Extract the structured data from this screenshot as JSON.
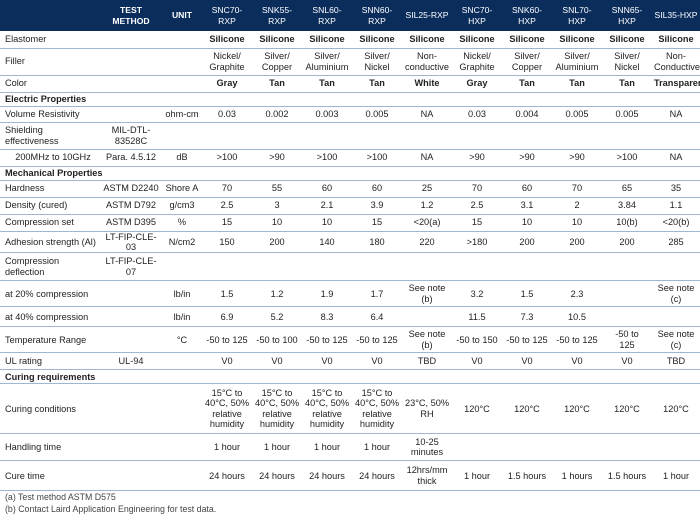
{
  "header": {
    "blank": "",
    "test_method": "TEST\nMETHOD",
    "unit": "UNIT",
    "products": [
      "SNC70-\nRXP",
      "SNK55-\nRXP",
      "SNL60-\nRXP",
      "SNN60-\nRXP",
      "SIL25-RXP",
      "SNC70-\nHXP",
      "SNK60-\nHXP",
      "SNL70-\nHXP",
      "SNN65-\nHXP",
      "SIL35-HXP"
    ]
  },
  "rows": [
    {
      "type": "data",
      "h": 17,
      "name": "row-elastomer",
      "label": "Elastomer",
      "method": "",
      "unit": "",
      "bold": true,
      "values": [
        "Silicone",
        "Silicone",
        "Silicone",
        "Silicone",
        "Silicone",
        "Silicone",
        "Silicone",
        "Silicone",
        "Silicone",
        "Silicone"
      ]
    },
    {
      "type": "data",
      "h": 27,
      "name": "row-filler",
      "label": "Filler",
      "method": "",
      "unit": "",
      "values": [
        "Nickel/\nGraphite",
        "Silver/\nCopper",
        "Silver/\nAluminium",
        "Silver/\nNickel",
        "Non-\nconductive",
        "Nickel/\nGraphite",
        "Silver/\nCopper",
        "Silver/\nAluminium",
        "Silver/\nNickel",
        "Non-\nConductive"
      ]
    },
    {
      "type": "data",
      "h": 17,
      "name": "row-color",
      "label": "Color",
      "method": "",
      "unit": "",
      "bold": true,
      "values": [
        "Gray",
        "Tan",
        "Tan",
        "Tan",
        "White",
        "Gray",
        "Tan",
        "Tan",
        "Tan",
        "Transparent"
      ]
    },
    {
      "type": "section",
      "h": 14,
      "name": "section-electric",
      "label": "Electric Properties"
    },
    {
      "type": "data",
      "h": 16,
      "name": "row-volume-resistivity",
      "label": "Volume Resistivity",
      "method": "",
      "unit": "ohm-cm",
      "values": [
        "0.03",
        "0.002",
        "0.003",
        "0.005",
        "NA",
        "0.03",
        "0.004",
        "0.005",
        "0.005",
        "NA"
      ]
    },
    {
      "type": "data",
      "h": 27,
      "name": "row-shielding",
      "label": "Shielding\neffectiveness",
      "method": "MIL-DTL-\n83528C",
      "unit": "",
      "values": [
        "",
        "",
        "",
        "",
        "",
        "",
        "",
        "",
        "",
        ""
      ]
    },
    {
      "type": "data",
      "h": 17,
      "name": "row-shielding-range",
      "label": "    200MHz to 10GHz",
      "method": "Para. 4.5.12",
      "unit": "dB",
      "values": [
        ">100",
        ">90",
        ">100",
        ">100",
        "NA",
        ">90",
        ">90",
        ">90",
        ">100",
        "NA"
      ]
    },
    {
      "type": "section",
      "h": 14,
      "name": "section-mechanical",
      "label": "Mechanical Properties"
    },
    {
      "type": "data",
      "h": 17,
      "name": "row-hardness",
      "label": "Hardness",
      "method": "ASTM D2240",
      "unit": "Shore A",
      "values": [
        "70",
        "55",
        "60",
        "60",
        "25",
        "70",
        "60",
        "70",
        "65",
        "35"
      ]
    },
    {
      "type": "data",
      "h": 17,
      "name": "row-density",
      "label": "Density (cured)",
      "method": "ASTM D792",
      "unit": "g/cm3",
      "values": [
        "2.5",
        "3",
        "2.1",
        "3.9",
        "1.2",
        "2.5",
        "3.1",
        "2",
        "3.84",
        "1.1"
      ]
    },
    {
      "type": "data",
      "h": 17,
      "name": "row-compression-set",
      "label": "Compression set",
      "method": "ASTM D395",
      "unit": "%",
      "values": [
        "15",
        "10",
        "10",
        "15",
        "<20(a)",
        "15",
        "10",
        "10",
        "10(b)",
        "<20(b)"
      ]
    },
    {
      "type": "data",
      "h": 17,
      "name": "row-adhesion",
      "label": "Adhesion strength (Al)",
      "method": "LT-FIP-CLE-03",
      "unit": "N/cm2",
      "values": [
        "150",
        "200",
        "140",
        "180",
        "220",
        ">180",
        "200",
        "200",
        "200",
        "285"
      ]
    },
    {
      "type": "data",
      "h": 28,
      "name": "row-compression-deflection",
      "label": "Compression\ndeflection",
      "method": "LT-FIP-CLE-07",
      "unit": "",
      "values": [
        "",
        "",
        "",
        "",
        "",
        "",
        "",
        "",
        "",
        ""
      ]
    },
    {
      "type": "data",
      "h": 26,
      "name": "row-compression-20",
      "label": "at 20% compression",
      "method": "",
      "unit": "lb/in",
      "values": [
        "1.5",
        "1.2",
        "1.9",
        "1.7",
        "See note\n(b)",
        "3.2",
        "1.5",
        "2.3",
        "",
        "See note (c)"
      ]
    },
    {
      "type": "data",
      "h": 20,
      "name": "row-compression-40",
      "label": "at 40% compression",
      "method": "",
      "unit": "lb/in",
      "values": [
        "6.9",
        "5.2",
        "8.3",
        "6.4",
        "",
        "11.5",
        "7.3",
        "10.5",
        "",
        ""
      ]
    },
    {
      "type": "data",
      "h": 26,
      "name": "row-temperature",
      "label": "Temperature Range",
      "method": "",
      "unit": "°C",
      "values": [
        "-50 to 125",
        "-50 to 100",
        "-50 to 125",
        "-50 to 125",
        "See note\n(b)",
        "-50 to 150",
        "-50 to 125",
        "-50 to 125",
        "-50 to\n125",
        "See note (c)"
      ]
    },
    {
      "type": "data",
      "h": 17,
      "name": "row-ul-rating",
      "label": "UL rating",
      "method": "UL-94",
      "unit": "",
      "values": [
        "V0",
        "V0",
        "V0",
        "V0",
        "TBD",
        "V0",
        "V0",
        "V0",
        "V0",
        "TBD"
      ]
    },
    {
      "type": "section",
      "h": 14,
      "name": "section-curing",
      "label": "Curing requirements"
    },
    {
      "type": "data",
      "h": 50,
      "name": "row-curing-conditions",
      "label": "Curing conditions",
      "method": "",
      "unit": "",
      "values": [
        "15°C to\n40°C, 50%\nrelative\nhumidity",
        "15°C to\n40°C, 50%\nrelative\nhumidity",
        "15°C to\n40°C, 50%\nrelative\nhumidity",
        "15°C to\n40°C, 50%\nrelative\nhumidity",
        "23°C, 50%\nRH",
        "120°C",
        "120°C",
        "120°C",
        "120°C",
        "120°C"
      ]
    },
    {
      "type": "data",
      "h": 27,
      "name": "row-handling-time",
      "label": "Handling time",
      "method": "",
      "unit": "",
      "values": [
        "1 hour",
        "1 hour",
        "1 hour",
        "1 hour",
        "10-25\nminutes",
        "",
        "",
        "",
        "",
        ""
      ]
    },
    {
      "type": "data",
      "h": 30,
      "name": "row-cure-time",
      "label": "Cure time",
      "method": "",
      "unit": "",
      "values": [
        "24 hours",
        "24 hours",
        "24 hours",
        "24 hours",
        "12hrs/mm\nthick",
        "1 hour",
        "1.5 hours",
        "1 hours",
        "1.5 hours",
        "1 hour"
      ]
    }
  ],
  "notes": [
    "(a) Test method ASTM D575",
    "(b) Contact Laird Application Engineering for test data."
  ],
  "colors": {
    "header_bg": "#0b2d5c",
    "header_text": "#ffffff",
    "rule": "#9fb5d0"
  }
}
